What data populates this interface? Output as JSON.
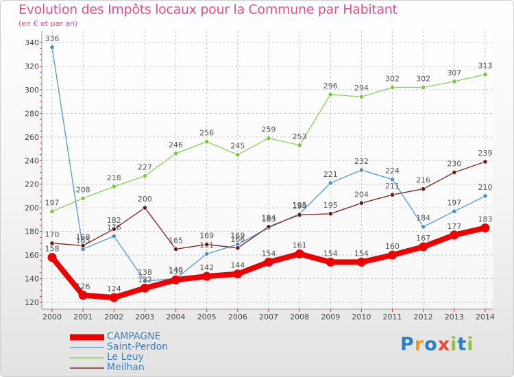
{
  "chart_data": {
    "type": "line",
    "title": "Evolution des Impôts locaux pour la Commune par Habitant",
    "subtitle": "(en € et par an)",
    "xlabel": "",
    "ylabel": "",
    "categories": [
      "2000",
      "2001",
      "2002",
      "2003",
      "2004",
      "2005",
      "2006",
      "2007",
      "2008",
      "2009",
      "2010",
      "2011",
      "2012",
      "2013",
      "2014"
    ],
    "ylim": [
      120,
      340
    ],
    "yticks": [
      120,
      140,
      160,
      180,
      200,
      220,
      240,
      260,
      280,
      300,
      320,
      340
    ],
    "grid": true,
    "legend_position": "bottom-left",
    "series": [
      {
        "name": "Le Leuy",
        "color": "#8dd35f",
        "marker": "#80c43e",
        "width": "thin",
        "values": [
          197,
          208,
          218,
          227,
          246,
          256,
          245,
          259,
          253,
          296,
          294,
          302,
          302,
          307,
          313
        ]
      },
      {
        "name": "Saint-Perdon",
        "color": "#5b9fd5",
        "marker": "#4a8fc8",
        "width": "thin",
        "values": [
          336,
          165,
          176,
          138,
          140,
          161,
          169,
          183,
          195,
          221,
          232,
          224,
          184,
          197,
          210
        ]
      },
      {
        "name": "Meilhan",
        "color": "#7a2a2a",
        "marker": "#6a1c1c",
        "width": "thin",
        "values": [
          170,
          168,
          182,
          200,
          165,
          169,
          166,
          184,
          194,
          195,
          204,
          211,
          216,
          230,
          239
        ]
      },
      {
        "name": "CAMPAGNE",
        "color": "#ee0000",
        "marker": "#ee0000",
        "width": "thick",
        "values": [
          158,
          126,
          124,
          132,
          139,
          142,
          144,
          154,
          161,
          154,
          154,
          160,
          167,
          177,
          183
        ]
      }
    ],
    "data_labels": {
      "Le Leuy": [
        "197",
        "208",
        "218",
        "227",
        "246",
        "256",
        "245",
        "259",
        "253",
        "296",
        "294",
        "302",
        "302",
        "307",
        "313"
      ],
      "Saint-Perdon": [
        "336",
        "165",
        "176",
        "138",
        "140",
        "161",
        "169",
        "183",
        "195",
        "221",
        "232",
        "224",
        "184",
        "197",
        "210"
      ],
      "Meilhan": [
        "170",
        "168",
        "182",
        "200",
        "165",
        "169",
        "166",
        "184",
        "194",
        "195",
        "204",
        "211",
        "216",
        "230",
        "239"
      ],
      "CAMPAGNE": [
        "158",
        "126",
        "124",
        "132",
        "139",
        "142",
        "144",
        "154",
        "161",
        "154",
        "154",
        "160",
        "167",
        "177",
        "183"
      ]
    },
    "legend": [
      "CAMPAGNE",
      "Saint-Perdon",
      "Le Leuy",
      "Meilhan"
    ]
  },
  "logo": {
    "p": "P",
    "r": "r",
    "o": "o",
    "x": "x",
    "i1": "i",
    "t": "t",
    "i2": "i"
  }
}
